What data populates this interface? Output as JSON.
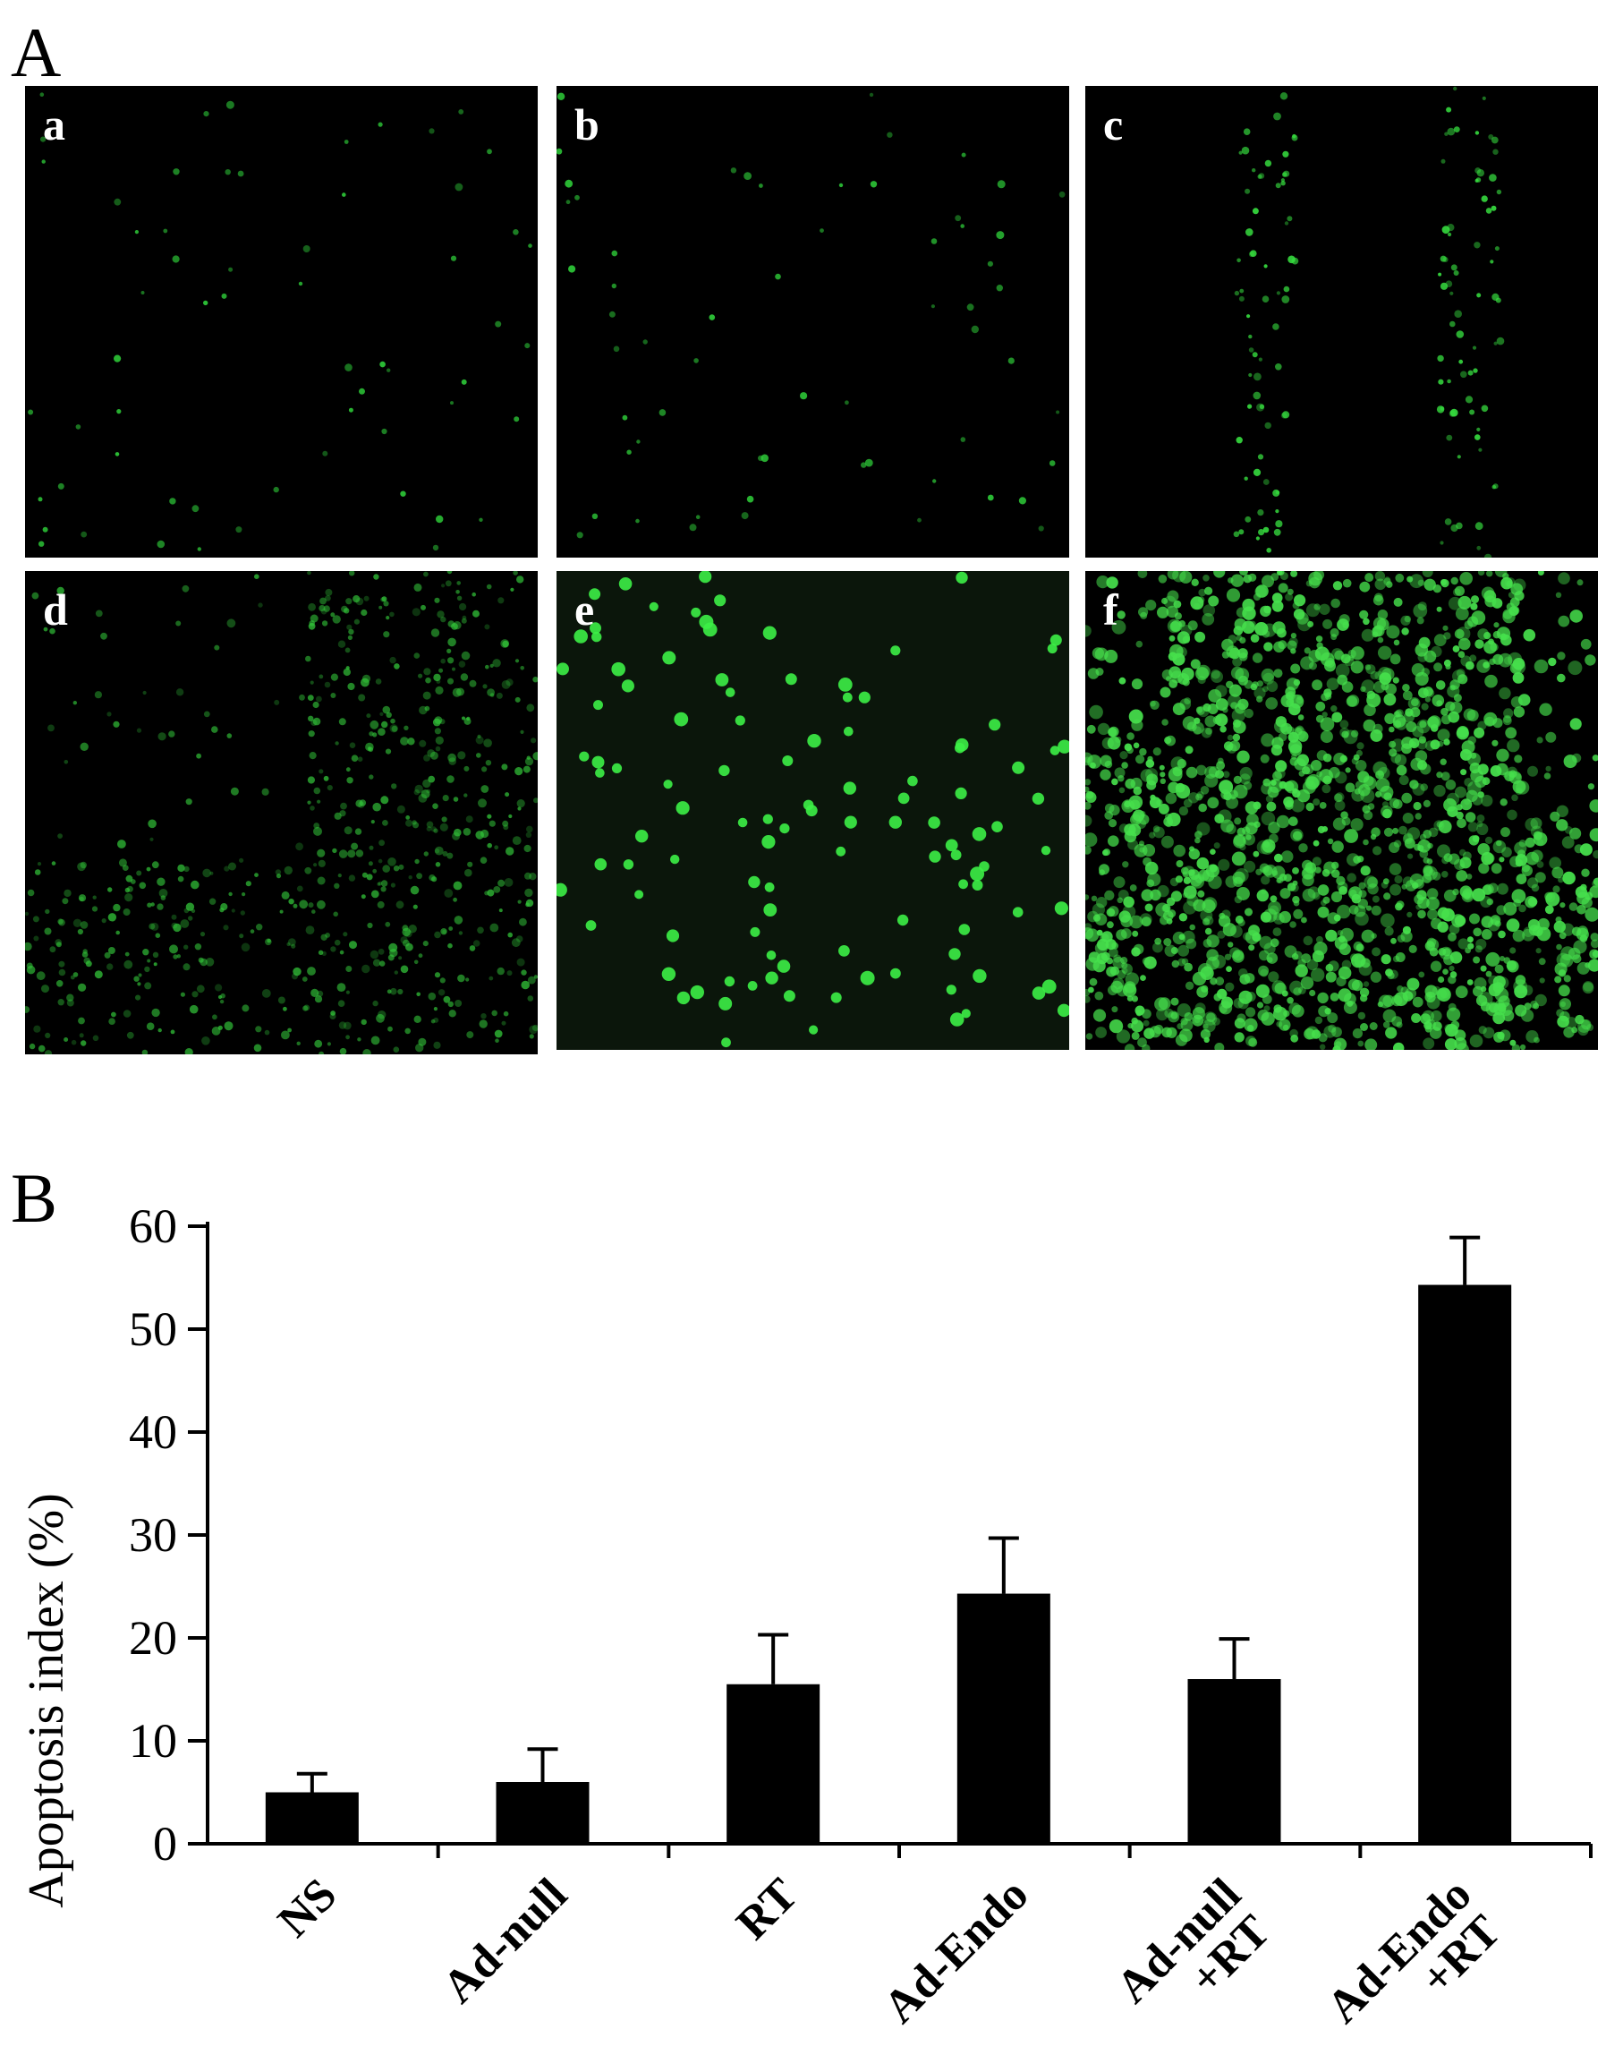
{
  "panels": {
    "A": {
      "label": "A"
    },
    "B": {
      "label": "B"
    }
  },
  "micrographs": [
    {
      "label": "a",
      "stain_color": "#2fd13a",
      "staining": "sparse"
    },
    {
      "label": "b",
      "stain_color": "#2fd13a",
      "staining": "sparse"
    },
    {
      "label": "c",
      "stain_color": "#37e040",
      "staining": "moderate"
    },
    {
      "label": "d",
      "stain_color": "#33c83a",
      "staining": "diffuse"
    },
    {
      "label": "e",
      "stain_color": "#3cf046",
      "staining": "scattered-bright"
    },
    {
      "label": "f",
      "stain_color": "#46e04c",
      "staining": "dense"
    }
  ],
  "chart_data": {
    "type": "bar",
    "ylabel": "Apoptosis index (%)",
    "ylim": [
      0,
      60
    ],
    "yticks": [
      0,
      10,
      20,
      30,
      40,
      50,
      60
    ],
    "categories": [
      {
        "lines": [
          "NS"
        ]
      },
      {
        "lines": [
          "Ad-null"
        ]
      },
      {
        "lines": [
          "RT"
        ]
      },
      {
        "lines": [
          "Ad-Endo"
        ]
      },
      {
        "lines": [
          "Ad-null",
          "+RT"
        ]
      },
      {
        "lines": [
          "Ad-Endo",
          "+RT"
        ]
      }
    ],
    "values": [
      5,
      6,
      15.5,
      24.3,
      16,
      54.3
    ],
    "errors": [
      1.8,
      3.2,
      4.8,
      5.4,
      3.9,
      4.6
    ],
    "bar_color": "#000000",
    "grid": false
  }
}
